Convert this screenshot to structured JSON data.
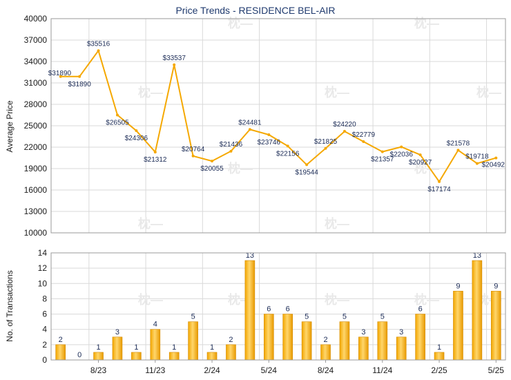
{
  "chart_data": [
    {
      "type": "line",
      "title": "Price Trends - RESIDENCE BEL-AIR",
      "ylabel": "Average Price",
      "ylim": [
        10000,
        40000
      ],
      "yticks": [
        10000,
        13000,
        16000,
        19000,
        22000,
        25000,
        28000,
        31000,
        34000,
        37000,
        40000
      ],
      "grid": true,
      "color": "#f5a800",
      "values": [
        31890,
        31890,
        35516,
        26505,
        24306,
        21312,
        33537,
        20764,
        20055,
        21436,
        24481,
        23746,
        22156,
        19544,
        21825,
        24220,
        22779,
        21357,
        22036,
        20927,
        17174,
        21578,
        19718,
        20492
      ],
      "labels": [
        "$31890",
        "$31890",
        "$35516",
        "$26505",
        "$24306",
        "$21312",
        "$33537",
        "$20764",
        "$20055",
        "$21436",
        "$24481",
        "$23746",
        "$22156",
        "$19544",
        "$21825",
        "$24220",
        "$22779",
        "$21357",
        "$22036",
        "$20927",
        "$17174",
        "$21578",
        "$19718",
        "$20492"
      ]
    },
    {
      "type": "bar",
      "ylabel": "No. of Transactions",
      "ylim": [
        0,
        14
      ],
      "yticks": [
        0,
        2,
        4,
        6,
        8,
        10,
        12,
        14
      ],
      "grid": true,
      "color": "#f5a800",
      "x_tick_labels": [
        "8/23",
        "11/23",
        "2/24",
        "5/24",
        "8/24",
        "11/24",
        "2/25",
        "5/25"
      ],
      "values": [
        2,
        0,
        1,
        3,
        1,
        4,
        1,
        5,
        1,
        2,
        13,
        6,
        6,
        5,
        2,
        5,
        3,
        5,
        3,
        6,
        1,
        9,
        13,
        9
      ]
    }
  ]
}
